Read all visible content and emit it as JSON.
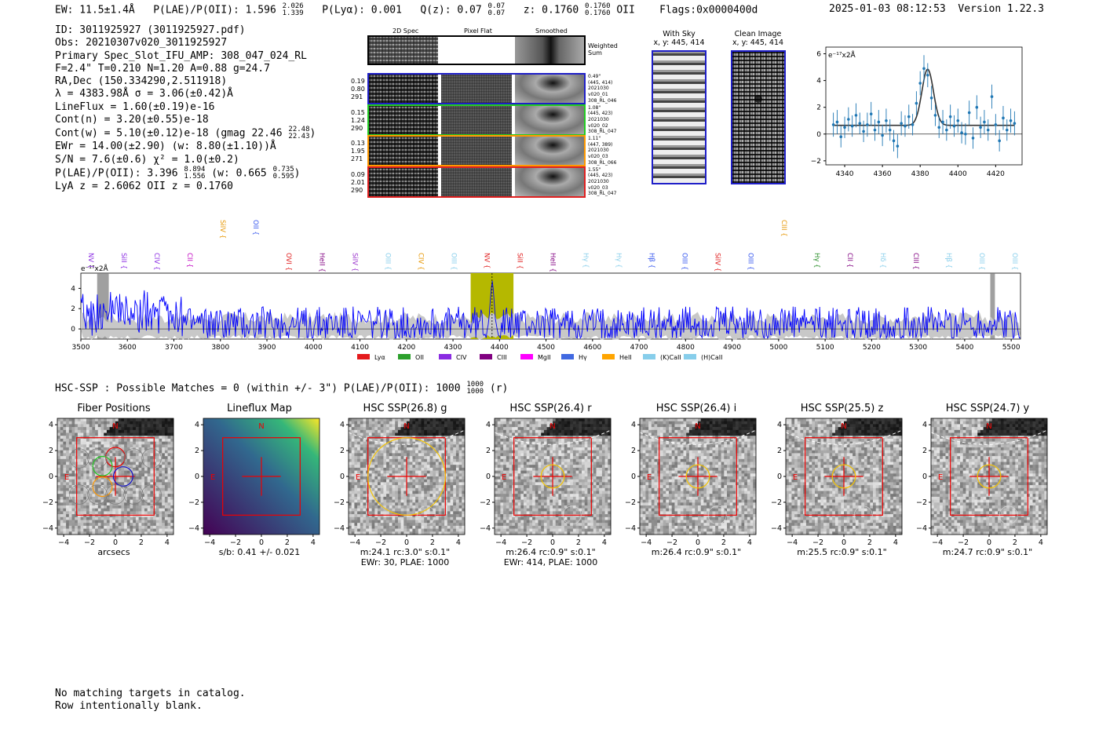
{
  "header": {
    "ew_label": "EW: 11.5±1.4Å",
    "plae_label": "P(LAE)/P(OII): 1.596",
    "plae_hi": "2.026",
    "plae_lo": "1.339",
    "plya_label": "P(Lyα): 0.001",
    "qz_label": "Q(z): 0.07",
    "qz_hi": "0.07",
    "qz_lo": "0.07",
    "z_label": "z: 0.1760",
    "z_hi": "0.1760",
    "z_lo": "0.1760",
    "z_line": "OII",
    "flags": "Flags:0x0000400d",
    "timestamp": "2025-01-03 08:12:53",
    "version": "Version 1.22.3"
  },
  "info": {
    "id": "ID: 3011925927 (3011925927.pdf)",
    "obs": "Obs: 20210307v020_3011925927",
    "primary": "Primary Spec_Slot_IFU_AMP: 308_047_024_RL",
    "fit": "F=2.4\"  T=0.210  N=1.20  A=0.88  g=24.7",
    "radec": "RA,Dec (150.334290,2.511918)",
    "lambda": "λ = 4383.98Å  σ = 3.06(±0.42)Å",
    "lineflux": "LineFlux = 1.60(±0.19)e-16",
    "contn": "Cont(n) = 3.20(±0.55)e-18",
    "contw": "Cont(w) = 5.10(±0.12)e-18 (gmag 22.46",
    "contw_hi": "22.48",
    "contw_lo": "22.43",
    "contw_end": ")",
    "ewr": "EWr = 14.00(±2.90) (w: 8.80(±1.10))Å",
    "sn": "S/N = 7.6(±0.6)  χ² = 1.0(±0.2)",
    "plae2": "P(LAE)/P(OII): 3.396",
    "plae2_hi": "8.894",
    "plae2_lo": "1.556",
    "plae2_w": "(w: 0.665",
    "plae2_w_hi": "0.735",
    "plae2_w_lo": "0.595",
    "plae2_end": ")",
    "lya": "LyA z = 2.6062  OII z = 0.1760"
  },
  "cutouts": {
    "col_2d": "2D Spec",
    "col_flat": "Pixel Flat",
    "col_smooth": "Smoothed",
    "weighted": "Weighted Sum",
    "rows": [
      {
        "left": [
          "0.19",
          "0.80",
          "291"
        ],
        "right": [
          "0.49\"",
          "(445, 414)",
          "2021030",
          "v020_01",
          "308_RL_046"
        ],
        "color": "#1f1fc8"
      },
      {
        "left": [
          "0.15",
          "1.24",
          "290"
        ],
        "right": [
          "1.08\"",
          "(445, 423)",
          "2021030",
          "v020_02",
          "308_RL_047"
        ],
        "color": "#22cc22"
      },
      {
        "left": [
          "0.13",
          "1.95",
          "271"
        ],
        "right": [
          "1.11\"",
          "(447, 389)",
          "2021030",
          "v020_03",
          "308_RL_066"
        ],
        "color": "#ff9900"
      },
      {
        "left": [
          "0.09",
          "2.01",
          "290"
        ],
        "right": [
          "1.55\"",
          "(445, 423)",
          "2021030",
          "v020_03",
          "308_RL_047"
        ],
        "color": "#e02020"
      }
    ],
    "with_sky_title": "With Sky",
    "with_sky_xy": "x, y: 445, 414",
    "clean_title": "Clean Image",
    "clean_xy": "x, y: 445, 414"
  },
  "zoom_plot": {
    "ylabel": "e⁻¹⁷x2Å",
    "xticks": [
      "4340",
      "4360",
      "4380",
      "4400",
      "4420"
    ],
    "yticks": [
      "6",
      "4",
      "2",
      "0",
      "−2"
    ]
  },
  "spectrum": {
    "ylabel": "e⁻¹⁷x2Å",
    "yticks": [
      "4",
      "2",
      "0"
    ],
    "xticks": [
      "3500",
      "3600",
      "3700",
      "3800",
      "3900",
      "4000",
      "4100",
      "4200",
      "4300",
      "4400",
      "4500",
      "4600",
      "4700",
      "4800",
      "4900",
      "5000",
      "5100",
      "5200",
      "5300",
      "5400",
      "5500"
    ],
    "lines": [
      {
        "name": "NV",
        "color": "#8a2be2",
        "row": 0
      },
      {
        "name": "SiII",
        "color": "#8a2be2",
        "row": 0
      },
      {
        "name": "CIV",
        "color": "#8a2be2",
        "row": 0
      },
      {
        "name": "CII",
        "color": "#c000c0",
        "row": 0
      },
      {
        "name": "SiIV",
        "color": "#e69500",
        "row": 1
      },
      {
        "name": "OII",
        "color": "#3355ee",
        "row": 1
      },
      {
        "name": "OVI",
        "color": "#e02020",
        "row": 0
      },
      {
        "name": "HeII",
        "color": "#800080",
        "row": 0
      },
      {
        "name": "SiIV",
        "color": "#9932cc",
        "row": 0
      },
      {
        "name": "OIII",
        "color": "#87ceeb",
        "row": 0
      },
      {
        "name": "CIV",
        "color": "#e69500",
        "row": 0
      },
      {
        "name": "OIII",
        "color": "#87ceeb",
        "row": 0
      },
      {
        "name": "NV",
        "color": "#e02020",
        "row": 0
      },
      {
        "name": "SiII",
        "color": "#e02020",
        "row": 0
      },
      {
        "name": "HeII",
        "color": "#800080",
        "row": 0
      },
      {
        "name": "Hγ",
        "color": "#87ceeb",
        "row": 0
      },
      {
        "name": "Hγ",
        "color": "#87ceeb",
        "row": 0
      },
      {
        "name": "Hβ",
        "color": "#3355ee",
        "row": 0
      },
      {
        "name": "OIII",
        "color": "#3355ee",
        "row": 0
      },
      {
        "name": "SiIV",
        "color": "#e02020",
        "row": 0
      },
      {
        "name": "OIII",
        "color": "#3355ee",
        "row": 0
      },
      {
        "name": "CIII",
        "color": "#e69500",
        "row": 1
      },
      {
        "name": "Hγ",
        "color": "#228b22",
        "row": 0
      },
      {
        "name": "CII",
        "color": "#800080",
        "row": 0
      },
      {
        "name": "Hδ",
        "color": "#87ceeb",
        "row": 0
      },
      {
        "name": "CIII",
        "color": "#800080",
        "row": 0
      },
      {
        "name": "Hβ",
        "color": "#87ceeb",
        "row": 0
      },
      {
        "name": "OIII",
        "color": "#87ceeb",
        "row": 0
      },
      {
        "name": "OIII",
        "color": "#87ceeb",
        "row": 0
      }
    ],
    "legend": [
      {
        "label": "Lyα",
        "color": "#e41a1c"
      },
      {
        "label": "OII",
        "color": "#2ca02c"
      },
      {
        "label": "CIV",
        "color": "#8a2be2"
      },
      {
        "label": "CIII",
        "color": "#800080"
      },
      {
        "label": "MgII",
        "color": "#ff00ff"
      },
      {
        "label": "Hγ",
        "color": "#4169e1"
      },
      {
        "label": "HeII",
        "color": "#ffa500"
      },
      {
        "label": "(K)CaII",
        "color": "#87ceeb"
      },
      {
        "label": "(H)CaII",
        "color": "#87ceeb"
      }
    ]
  },
  "hsc": {
    "title": "HSC-SSP : Possible Matches = 0 (within +/- 3\")  P(LAE)/P(OII): 1000",
    "title_hi": "1000",
    "title_lo": "1000",
    "title_end": "(r)",
    "panels": [
      {
        "title": "Fiber Positions",
        "cap1": "arcsecs",
        "cap2": "",
        "kind": "fiber"
      },
      {
        "title": "Lineflux Map",
        "cap1": "s/b: 0.41 +/- 0.021",
        "cap2": "",
        "kind": "flux"
      },
      {
        "title": "HSC SSP(26.8) g",
        "cap1": "m:24.1 rc:3.0\"  s:0.1\"",
        "cap2": "EWr: 30, PLAE: 1000",
        "kind": "g"
      },
      {
        "title": "HSC SSP(26.4) r",
        "cap1": "m:26.4 rc:0.9\"  s:0.1\"",
        "cap2": "EWr: 414, PLAE: 1000",
        "kind": "r"
      },
      {
        "title": "HSC SSP(26.4) i",
        "cap1": "m:26.4 rc:0.9\"  s:0.1\"",
        "cap2": "",
        "kind": "i"
      },
      {
        "title": "HSC SSP(25.5) z",
        "cap1": "m:25.5 rc:0.9\"  s:0.1\"",
        "cap2": "",
        "kind": "z"
      },
      {
        "title": "HSC SSP(24.7) y",
        "cap1": "m:24.7 rc:0.9\"  s:0.1\"",
        "cap2": "",
        "kind": "y"
      }
    ],
    "axis_ticks_x": [
      "−4",
      "−2",
      "0",
      "2",
      "4"
    ],
    "axis_ticks_y": [
      "4",
      "2",
      "0",
      "−2",
      "−4"
    ],
    "north": "N",
    "east": "E"
  },
  "footer": {
    "line1": "No matching targets in catalog.",
    "line2": "Row intentionally blank."
  },
  "chart_data": [
    {
      "type": "line",
      "title": "",
      "xlabel": "",
      "ylabel": "e⁻¹⁷x2Å",
      "xlim": [
        4330,
        4434
      ],
      "ylim": [
        -2.3,
        6.5
      ],
      "model_center": 4383.98,
      "model_sigma": 3.06,
      "model_amp": 4.2,
      "continuum": 0.65,
      "x": [
        4334,
        4336,
        4338,
        4340,
        4342,
        4344,
        4346,
        4348,
        4350,
        4352,
        4354,
        4356,
        4358,
        4360,
        4362,
        4364,
        4366,
        4368,
        4370,
        4372,
        4374,
        4376,
        4378,
        4380,
        4382,
        4384,
        4386,
        4388,
        4390,
        4392,
        4394,
        4396,
        4398,
        4400,
        4402,
        4404,
        4406,
        4408,
        4410,
        4412,
        4414,
        4416,
        4418,
        4420,
        4422,
        4424,
        4426,
        4428,
        4430
      ],
      "y": [
        0.7,
        0.9,
        -0.2,
        0.5,
        1.1,
        0.6,
        1.4,
        0.8,
        0.2,
        0.7,
        1.5,
        0.3,
        0.9,
        -0.1,
        1.0,
        0.3,
        -0.5,
        -0.9,
        0.8,
        0.6,
        1.3,
        0.7,
        2.3,
        3.8,
        4.9,
        4.4,
        2.7,
        1.4,
        0.5,
        0.9,
        0.3,
        1.3,
        0.6,
        1.0,
        0.1,
        0.0,
        1.6,
        -0.3,
        2.0,
        0.5,
        0.9,
        0.3,
        2.8,
        0.7,
        -0.5,
        1.2,
        0.3,
        1.0,
        0.8
      ],
      "err": [
        0.9,
        0.9,
        0.8,
        0.8,
        0.9,
        0.8,
        0.9,
        0.8,
        0.8,
        0.9,
        0.9,
        0.8,
        0.9,
        0.8,
        0.9,
        0.8,
        0.8,
        0.9,
        0.9,
        0.8,
        0.9,
        0.8,
        0.9,
        0.9,
        1.0,
        0.9,
        0.9,
        0.8,
        0.8,
        0.9,
        0.8,
        0.9,
        0.8,
        0.9,
        0.8,
        0.8,
        0.9,
        0.8,
        0.9,
        0.8,
        0.9,
        0.8,
        0.9,
        0.8,
        0.8,
        0.9,
        0.8,
        0.9,
        0.9
      ]
    },
    {
      "type": "line",
      "title": "",
      "xlabel": "",
      "ylabel": "e⁻¹⁷x2Å",
      "xlim": [
        3500,
        5520
      ],
      "ylim": [
        -1.0,
        5.5
      ],
      "series": [
        {
          "name": "flux",
          "color": "#0000ff"
        },
        {
          "name": "error",
          "color": "#bbbbbb"
        }
      ],
      "highlight_range": [
        4338,
        4430
      ],
      "line_marker": 4383.98,
      "masked": [
        [
          3535,
          3560
        ],
        [
          5455,
          5465
        ]
      ]
    }
  ]
}
